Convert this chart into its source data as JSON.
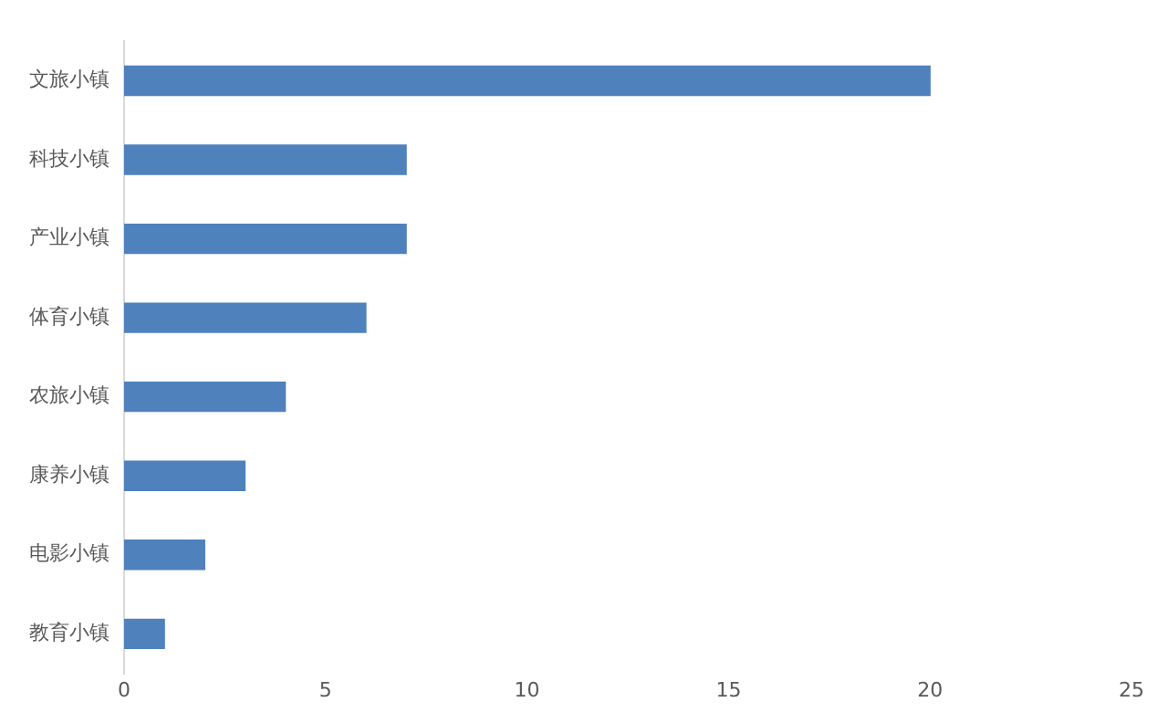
{
  "chart_data": {
    "type": "bar",
    "orientation": "horizontal",
    "categories": [
      "文旅小镇",
      "科技小镇",
      "产业小镇",
      "体育小镇",
      "农旅小镇",
      "康养小镇",
      "电影小镇",
      "教育小镇"
    ],
    "values": [
      20,
      7,
      7,
      6,
      4,
      3,
      2,
      1
    ],
    "color": "#4f81bd",
    "xlim": [
      0,
      25
    ],
    "xticks": [
      0,
      5,
      10,
      15,
      20,
      25
    ],
    "grid": false,
    "legend": false
  }
}
